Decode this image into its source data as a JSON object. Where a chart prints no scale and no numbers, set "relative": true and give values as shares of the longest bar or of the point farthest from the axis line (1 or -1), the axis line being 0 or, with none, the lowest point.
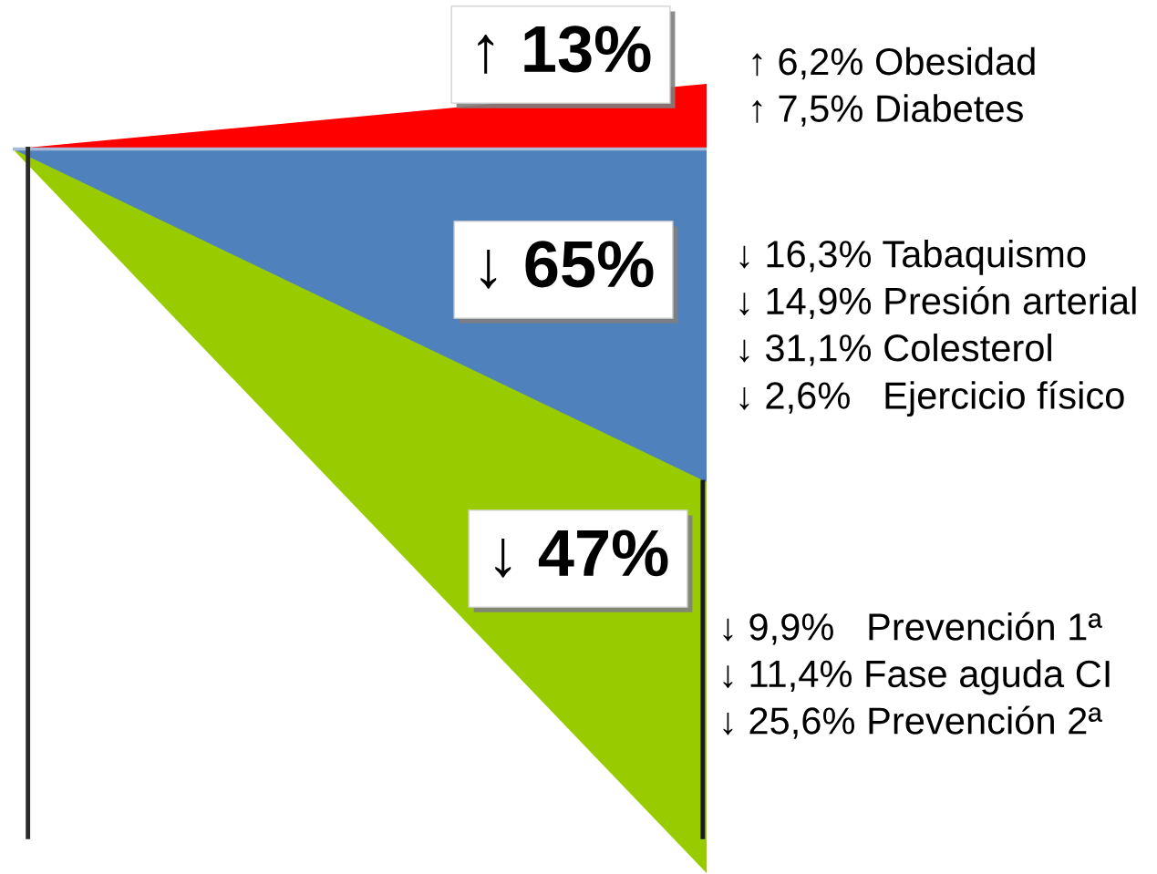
{
  "chart_data": {
    "type": "area",
    "relative": true,
    "categories": [
      null,
      null
    ],
    "series": [
      {
        "color": "#ff0000",
        "values": [
          0,
          0.09
        ]
      },
      {
        "color": "#99cc00",
        "values": [
          0,
          -1
        ]
      },
      {
        "color": "#4f81bd",
        "values": [
          0,
          -0.46
        ]
      }
    ],
    "ref_lines": [
      {
        "axis": "y",
        "value": 0,
        "color": "#a8bad8"
      }
    ],
    "annotations": [
      "↑ 13%",
      "↓ 65%",
      "↓ 47%",
      "↑ 6,2% Obesidad\n↑ 7,5% Diabetes",
      "↓ 16,3% Tabaquismo\n↓ 14,9% Presión arterial\n↓ 31,1% Colesterol\n↓ 2,6%   Ejercicio físico",
      "↓ 9,9%   Prevención 1ª\n↓ 11,4% Fase aguda CI\n↓ 25,6% Prevención 2ª"
    ]
  }
}
